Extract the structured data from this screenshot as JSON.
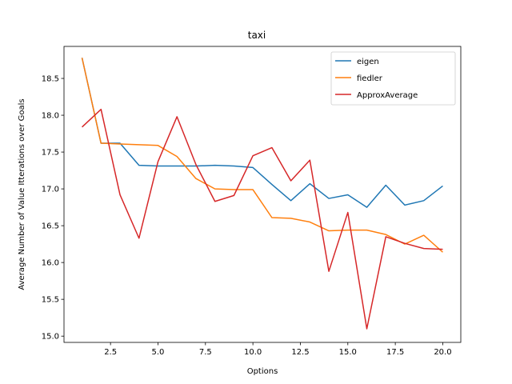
{
  "chart_data": {
    "type": "line",
    "title": "taxi",
    "xlabel": "Options",
    "ylabel": "Average Number of Value Itterations over Goals",
    "xlim": [
      0.05,
      20.95
    ],
    "ylim": [
      14.915,
      18.935
    ],
    "xticks": [
      2.5,
      5.0,
      7.5,
      10.0,
      12.5,
      15.0,
      17.5,
      20.0
    ],
    "xtick_labels": [
      "2.5",
      "5.0",
      "7.5",
      "10.0",
      "12.5",
      "15.0",
      "17.5",
      "20.0"
    ],
    "yticks": [
      15.0,
      15.5,
      16.0,
      16.5,
      17.0,
      17.5,
      18.0,
      18.5
    ],
    "ytick_labels": [
      "15.0",
      "15.5",
      "16.0",
      "16.5",
      "17.0",
      "17.5",
      "18.0",
      "18.5"
    ],
    "grid": false,
    "legend_position": "top-right",
    "x": [
      1,
      2,
      3,
      4,
      5,
      6,
      7,
      8,
      9,
      10,
      11,
      12,
      13,
      14,
      15,
      16,
      17,
      18,
      19,
      20
    ],
    "series": [
      {
        "name": "eigen",
        "color": "#1f77b4",
        "values": [
          18.78,
          17.62,
          17.62,
          17.32,
          17.31,
          17.31,
          17.31,
          17.32,
          17.31,
          17.29,
          17.06,
          16.84,
          17.07,
          16.87,
          16.92,
          16.75,
          17.05,
          16.78,
          16.84,
          17.04
        ]
      },
      {
        "name": "fiedler",
        "color": "#ff7f0e",
        "values": [
          18.78,
          17.62,
          17.61,
          17.6,
          17.59,
          17.44,
          17.14,
          17.0,
          16.99,
          16.99,
          16.61,
          16.6,
          16.55,
          16.43,
          16.44,
          16.44,
          16.38,
          16.25,
          16.37,
          16.14
        ]
      },
      {
        "name": "ApproxAverage",
        "color": "#d62728",
        "values": [
          17.84,
          18.08,
          16.92,
          16.33,
          17.37,
          17.98,
          17.33,
          16.83,
          16.91,
          17.45,
          17.56,
          17.11,
          17.39,
          15.88,
          16.68,
          15.1,
          16.35,
          16.26,
          16.19,
          16.18
        ]
      }
    ]
  }
}
